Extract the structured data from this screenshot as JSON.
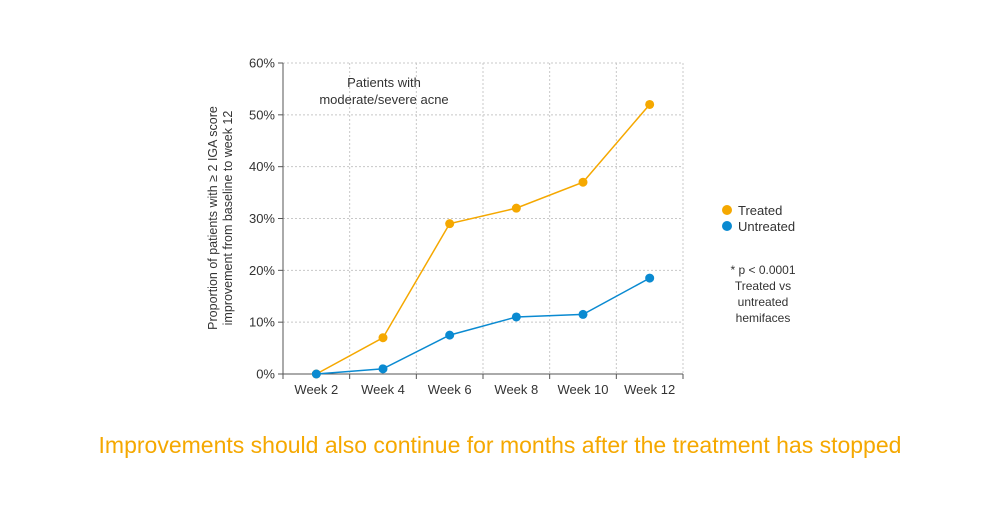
{
  "chart_data": {
    "type": "line",
    "categories": [
      "Week 2",
      "Week 4",
      "Week 6",
      "Week 8",
      "Week 10",
      "Week 12"
    ],
    "series": [
      {
        "name": "Treated",
        "values": [
          0,
          7,
          29,
          32,
          37,
          52
        ],
        "color": "#f5a800"
      },
      {
        "name": "Untreated",
        "values": [
          0,
          1,
          7.5,
          11,
          11.5,
          18.5
        ],
        "color": "#0a8ad1"
      }
    ],
    "yticks": [
      "0%",
      "10%",
      "20%",
      "30%",
      "40%",
      "50%",
      "60%"
    ],
    "ylim": [
      0,
      60
    ],
    "ylabel_line1": "Proportion of patients with ≥ 2 IGA score",
    "ylabel_line2": "improvement from baseline to week 12",
    "annotation_line1": "Patients with",
    "annotation_line2": "moderate/severe acne",
    "note_lines": [
      "* p < 0.0001",
      "Treated vs",
      "untreated",
      "hemifaces"
    ],
    "grid": true,
    "legend_position": "right"
  },
  "caption": "Improvements should also continue for months after the treatment has stopped"
}
